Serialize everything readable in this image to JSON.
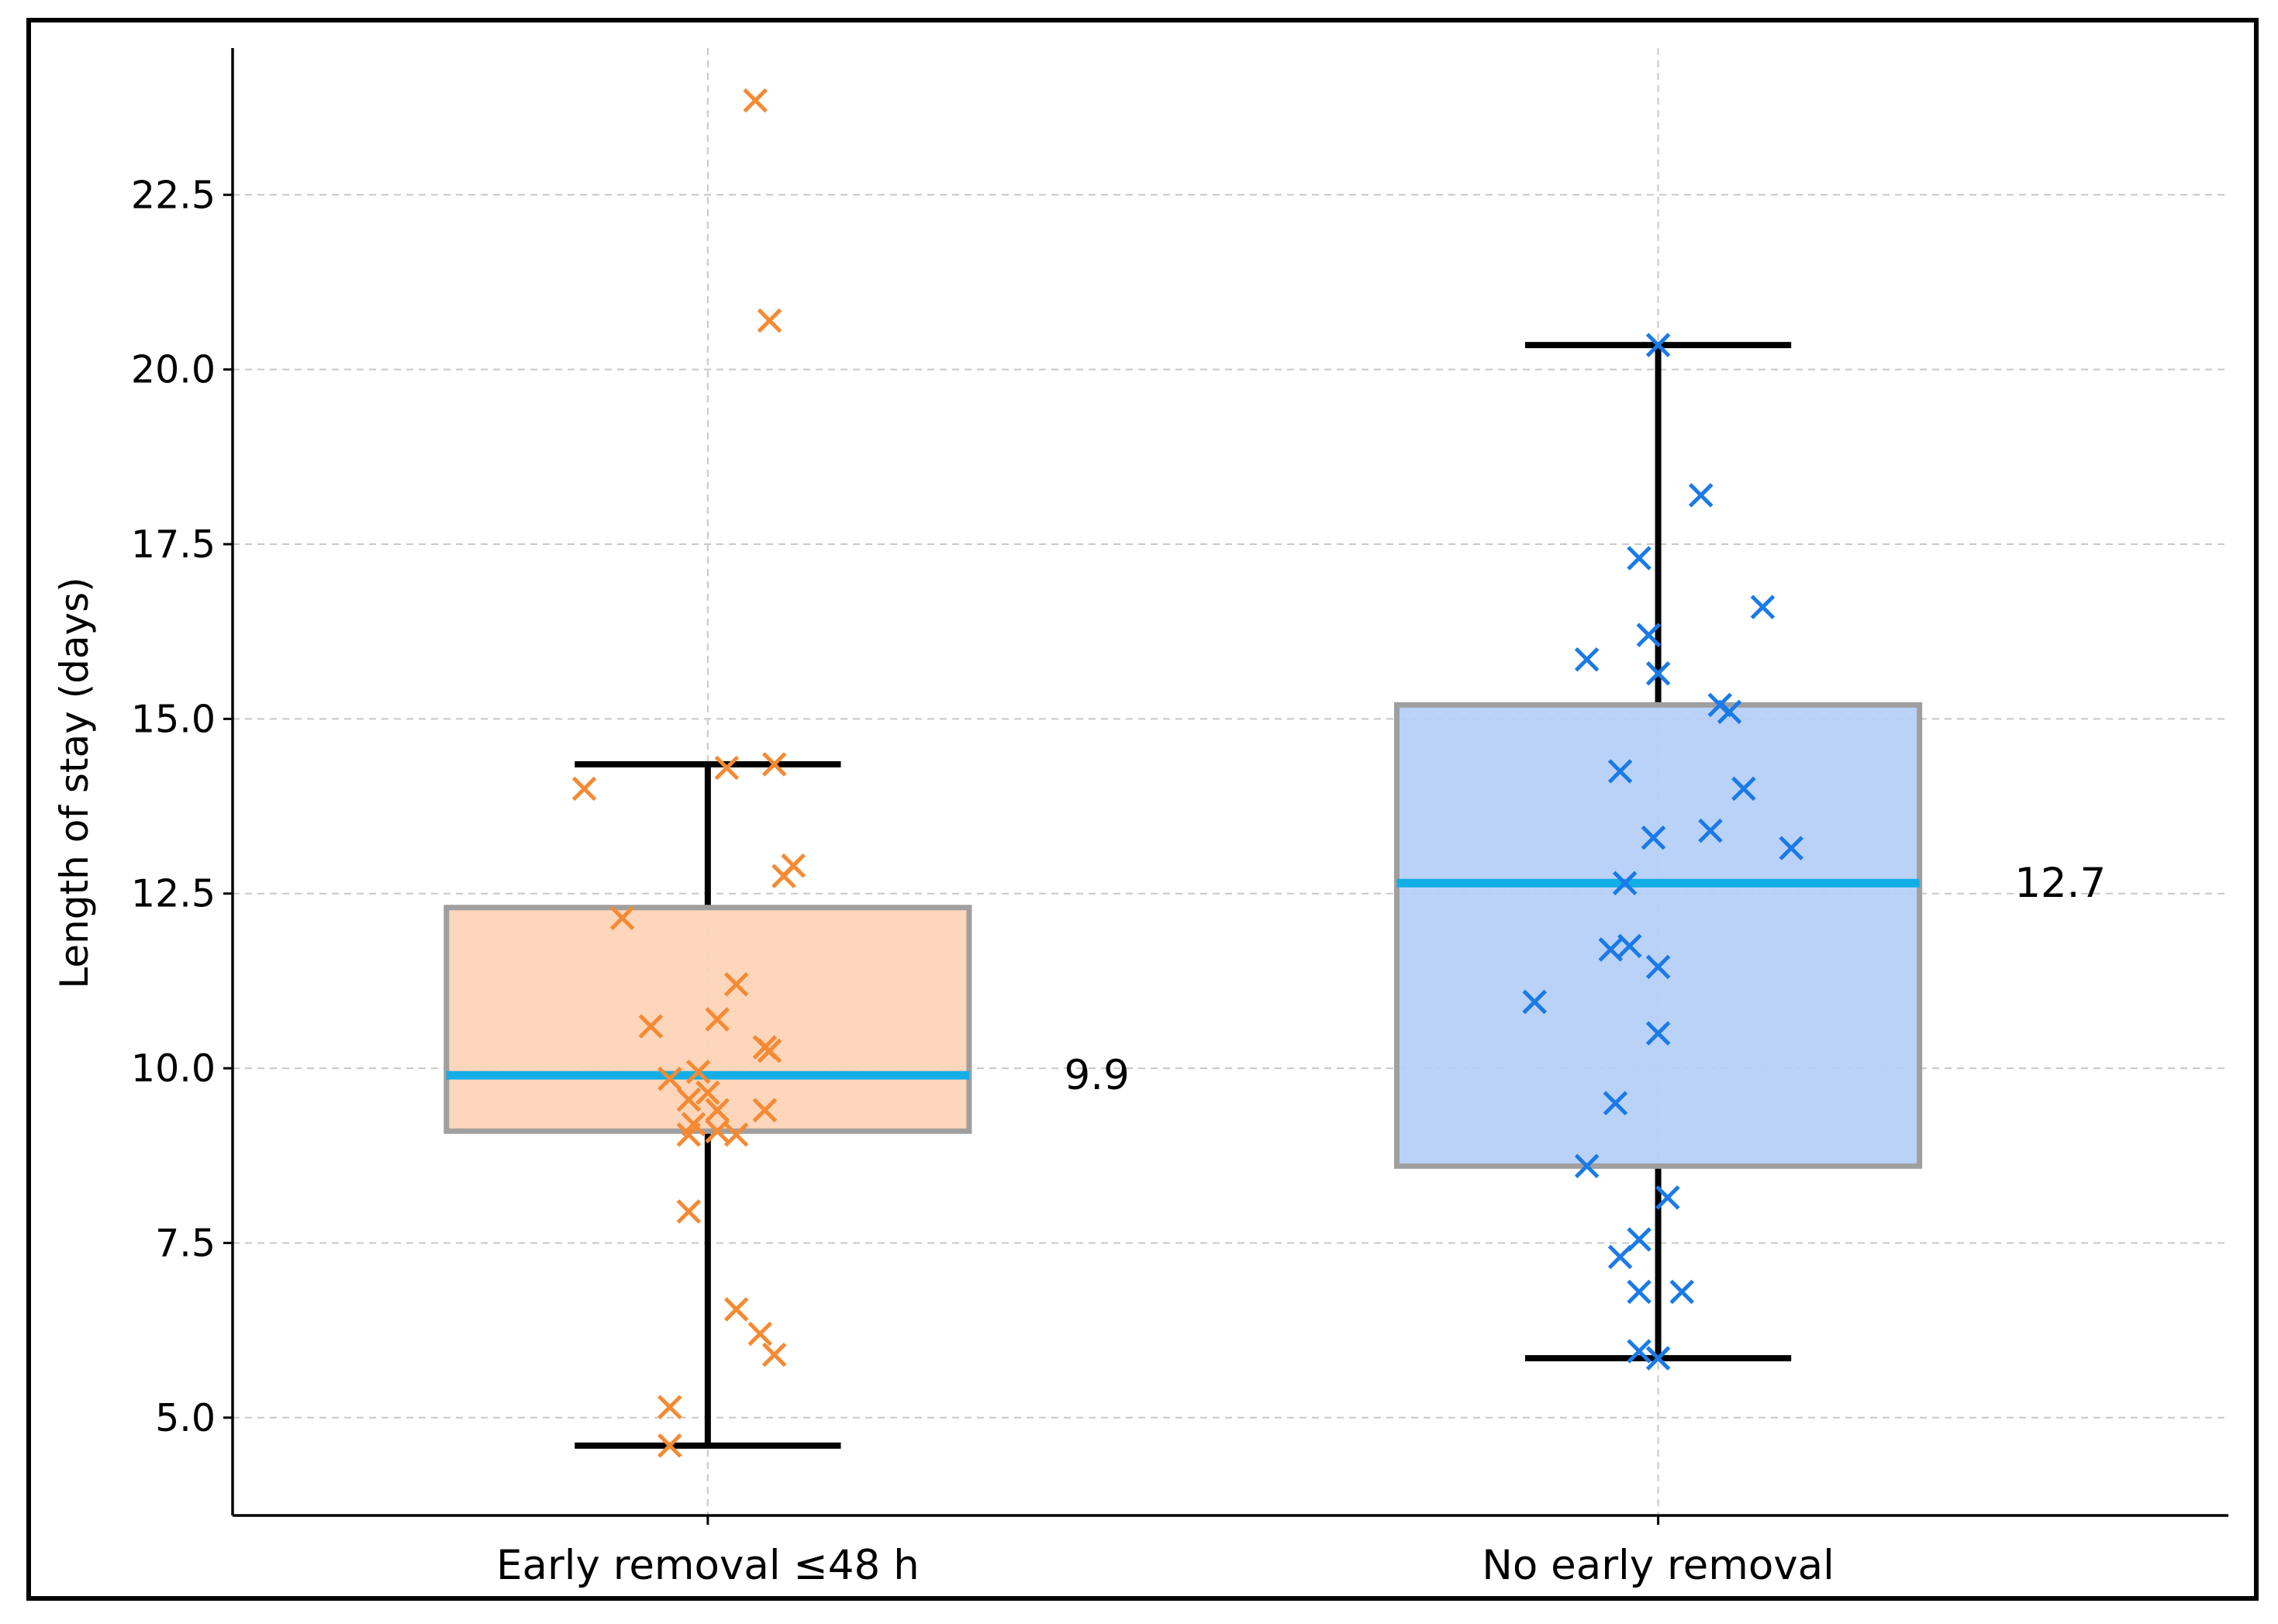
{
  "chart_data": {
    "type": "boxplot",
    "title": "",
    "xlabel": "",
    "ylabel": "Length of stay (days)",
    "ylim": [
      3.6,
      24.6
    ],
    "yticks": [
      5.0,
      7.5,
      10.0,
      12.5,
      15.0,
      17.5,
      20.0,
      22.5
    ],
    "ytick_labels": [
      "5.0",
      "7.5",
      "10.0",
      "12.5",
      "15.0",
      "17.5",
      "20.0",
      "22.5"
    ],
    "grid": true,
    "categories": [
      "Early removal ≤48 h",
      "No early removal"
    ],
    "groups": [
      {
        "name": "Early removal ≤48 h",
        "box_color": "#fdd3b6",
        "point_color": "#f58a33",
        "whisker_low": 4.6,
        "q1": 9.1,
        "median": 9.9,
        "q3": 12.3,
        "whisker_high": 14.35,
        "median_label": "9.9",
        "points": [
          {
            "x": -0.13,
            "y": 14.0
          },
          {
            "x": -0.09,
            "y": 12.15
          },
          {
            "x": -0.06,
            "y": 10.6
          },
          {
            "x": -0.04,
            "y": 9.85
          },
          {
            "x": -0.02,
            "y": 9.55
          },
          {
            "x": -0.015,
            "y": 9.2
          },
          {
            "x": -0.02,
            "y": 9.05
          },
          {
            "x": -0.01,
            "y": 9.95
          },
          {
            "x": 0.01,
            "y": 9.4
          },
          {
            "x": 0.0,
            "y": 9.65
          },
          {
            "x": 0.01,
            "y": 9.1
          },
          {
            "x": 0.03,
            "y": 9.05
          },
          {
            "x": 0.06,
            "y": 9.4
          },
          {
            "x": 0.06,
            "y": 10.3
          },
          {
            "x": 0.065,
            "y": 10.25
          },
          {
            "x": 0.01,
            "y": 10.7
          },
          {
            "x": 0.03,
            "y": 11.2
          },
          {
            "x": 0.02,
            "y": 14.3
          },
          {
            "x": 0.07,
            "y": 14.35
          },
          {
            "x": 0.08,
            "y": 12.75
          },
          {
            "x": 0.09,
            "y": 12.9
          },
          {
            "x": -0.02,
            "y": 7.95
          },
          {
            "x": 0.03,
            "y": 6.55
          },
          {
            "x": 0.055,
            "y": 6.2
          },
          {
            "x": 0.07,
            "y": 5.9
          },
          {
            "x": -0.04,
            "y": 5.15
          },
          {
            "x": -0.04,
            "y": 4.6
          },
          {
            "x": 0.05,
            "y": 23.85
          },
          {
            "x": 0.065,
            "y": 20.7
          }
        ]
      },
      {
        "name": "No early removal",
        "box_color": "#b5cff8",
        "point_color": "#1a7ae8",
        "whisker_low": 5.85,
        "q1": 8.6,
        "median": 12.65,
        "q3": 15.2,
        "whisker_high": 20.35,
        "median_label": "12.7",
        "points": [
          {
            "x": 0.0,
            "y": 20.35
          },
          {
            "x": 0.045,
            "y": 18.2
          },
          {
            "x": -0.02,
            "y": 17.3
          },
          {
            "x": 0.11,
            "y": 16.6
          },
          {
            "x": -0.01,
            "y": 16.2
          },
          {
            "x": -0.075,
            "y": 15.85
          },
          {
            "x": 0.0,
            "y": 15.65
          },
          {
            "x": 0.065,
            "y": 15.2
          },
          {
            "x": 0.075,
            "y": 15.1
          },
          {
            "x": -0.04,
            "y": 14.25
          },
          {
            "x": 0.09,
            "y": 14.0
          },
          {
            "x": 0.055,
            "y": 13.4
          },
          {
            "x": -0.005,
            "y": 13.3
          },
          {
            "x": 0.14,
            "y": 13.15
          },
          {
            "x": -0.035,
            "y": 12.65
          },
          {
            "x": -0.05,
            "y": 11.7
          },
          {
            "x": -0.03,
            "y": 11.75
          },
          {
            "x": 0.0,
            "y": 11.45
          },
          {
            "x": -0.13,
            "y": 10.95
          },
          {
            "x": 0.0,
            "y": 10.5
          },
          {
            "x": -0.045,
            "y": 9.5
          },
          {
            "x": -0.075,
            "y": 8.6
          },
          {
            "x": 0.01,
            "y": 8.15
          },
          {
            "x": -0.02,
            "y": 7.55
          },
          {
            "x": -0.04,
            "y": 7.3
          },
          {
            "x": -0.02,
            "y": 6.8
          },
          {
            "x": 0.025,
            "y": 6.8
          },
          {
            "x": -0.02,
            "y": 5.95
          },
          {
            "x": 0.0,
            "y": 5.85
          }
        ]
      }
    ]
  },
  "colors": {
    "median_line": "#13aee6",
    "whisker": "#000000",
    "box_edge": "#9f9f9f",
    "grid": "#c8c8c8"
  }
}
